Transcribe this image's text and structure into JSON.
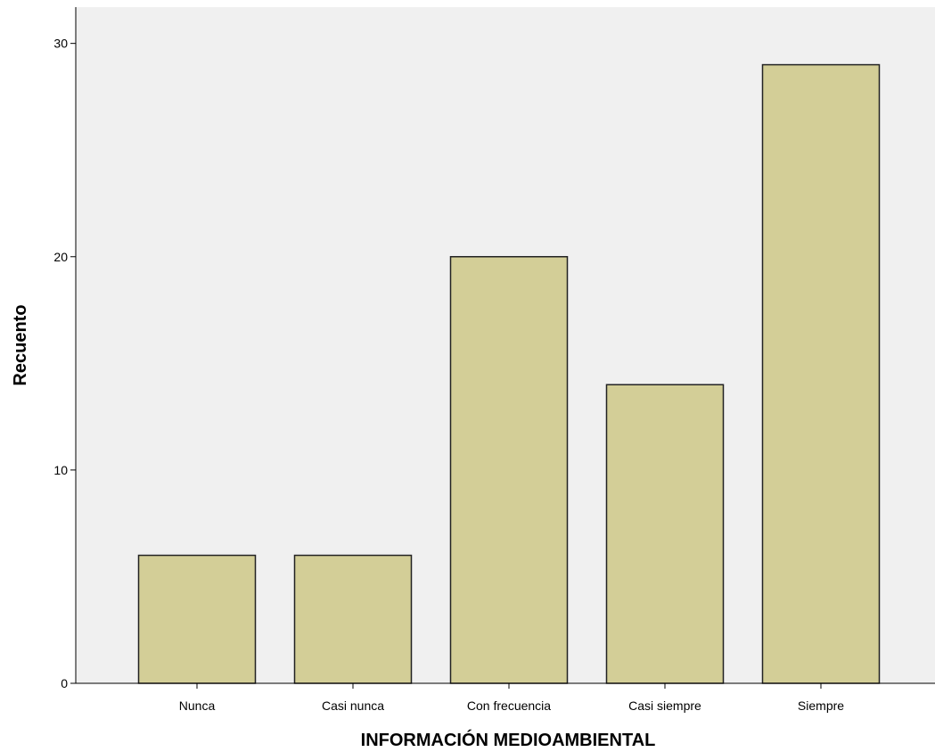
{
  "chart_data": {
    "type": "bar",
    "title": "",
    "xlabel": "INFORMACIÓN MEDIOAMBIENTAL",
    "ylabel": "Recuento",
    "categories": [
      "Nunca",
      "Casi nunca",
      "Con frecuencia",
      "Casi siempre",
      "Siempre"
    ],
    "values": [
      6,
      6,
      20,
      14,
      29
    ],
    "ylim": [
      0,
      31.7
    ],
    "yticks": [
      0,
      10,
      20,
      30
    ],
    "grid": false,
    "colors": {
      "plot_background": "#f0f0f0",
      "bar_fill": "#d3ce97",
      "bar_stroke": "#222222",
      "axis": "#000000"
    }
  }
}
